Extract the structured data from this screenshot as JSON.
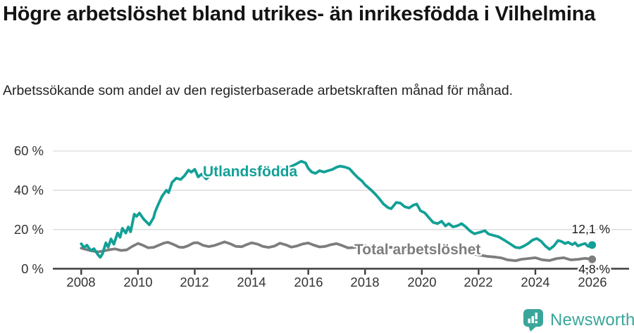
{
  "header": {},
  "colors": {
    "accent_teal": "#12a096",
    "series_gray": "#7d7d7d",
    "axis": "#3d3d3d",
    "grid": "#d9d9d9",
    "end_label_text": "#1a1a1a",
    "logo_teal": "#3aa69b",
    "background": "#ffffff"
  },
  "chart_data": {
    "type": "line",
    "title": "Högre arbetslöshet bland utrikes- än inrikesfödda i Vilhelmina",
    "subtitle": "Arbetssökande som andel av den registerbaserade arbetskraften månad för månad.",
    "xlabel": "",
    "ylabel": "",
    "xlim": [
      2007,
      2027.4
    ],
    "ylim": [
      0,
      60
    ],
    "x_ticks": [
      2008,
      2010,
      2012,
      2014,
      2016,
      2018,
      2020,
      2022,
      2024,
      2026
    ],
    "y_ticks": [
      0,
      20,
      40,
      60
    ],
    "y_tick_suffix": " %",
    "grid": "horizontal",
    "legend_position": "inline-on-line",
    "series": [
      {
        "name": "Utlandsfödda",
        "color": "#12a096",
        "end_label": "12,1 %",
        "end_value": 12.1,
        "points": [
          [
            2008.0,
            12.7
          ],
          [
            2008.1,
            10.8
          ],
          [
            2008.2,
            12.0
          ],
          [
            2008.33,
            9.3
          ],
          [
            2008.45,
            10.2
          ],
          [
            2008.58,
            7.3
          ],
          [
            2008.67,
            5.8
          ],
          [
            2008.75,
            7.6
          ],
          [
            2008.87,
            13.2
          ],
          [
            2008.95,
            11.0
          ],
          [
            2009.05,
            15.2
          ],
          [
            2009.15,
            12.5
          ],
          [
            2009.28,
            18.2
          ],
          [
            2009.37,
            16.0
          ],
          [
            2009.45,
            20.6
          ],
          [
            2009.57,
            18.2
          ],
          [
            2009.66,
            21.3
          ],
          [
            2009.74,
            18.8
          ],
          [
            2009.87,
            27.8
          ],
          [
            2009.95,
            26.7
          ],
          [
            2010.05,
            28.4
          ],
          [
            2010.2,
            25.3
          ],
          [
            2010.4,
            22.4
          ],
          [
            2010.55,
            26.0
          ],
          [
            2010.6,
            28.9
          ],
          [
            2010.72,
            33.0
          ],
          [
            2010.85,
            37.0
          ],
          [
            2011.0,
            40.0
          ],
          [
            2011.08,
            38.8
          ],
          [
            2011.2,
            44.0
          ],
          [
            2011.35,
            46.2
          ],
          [
            2011.5,
            45.5
          ],
          [
            2011.63,
            47.3
          ],
          [
            2011.78,
            50.3
          ],
          [
            2011.88,
            49.2
          ],
          [
            2012.0,
            50.7
          ],
          [
            2012.12,
            46.8
          ],
          [
            2012.25,
            48.3
          ],
          [
            2012.4,
            45.8
          ],
          [
            2012.55,
            47.5
          ],
          [
            2012.7,
            49.0
          ],
          [
            2012.9,
            50.2
          ],
          [
            2013.05,
            50.8
          ],
          [
            2013.2,
            48.8
          ],
          [
            2013.4,
            49.8
          ],
          [
            2013.6,
            50.3
          ],
          [
            2013.8,
            49.2
          ],
          [
            2014.0,
            50.6
          ],
          [
            2014.2,
            49.0
          ],
          [
            2014.4,
            50.2
          ],
          [
            2014.6,
            51.2
          ],
          [
            2014.8,
            50.2
          ],
          [
            2015.0,
            51.6
          ],
          [
            2015.2,
            50.8
          ],
          [
            2015.4,
            52.2
          ],
          [
            2015.6,
            53.6
          ],
          [
            2015.75,
            54.8
          ],
          [
            2015.9,
            54.0
          ],
          [
            2016.0,
            51.2
          ],
          [
            2016.12,
            49.3
          ],
          [
            2016.25,
            48.6
          ],
          [
            2016.4,
            50.0
          ],
          [
            2016.55,
            49.3
          ],
          [
            2016.7,
            50.0
          ],
          [
            2016.85,
            50.6
          ],
          [
            2017.0,
            51.8
          ],
          [
            2017.12,
            52.3
          ],
          [
            2017.3,
            51.8
          ],
          [
            2017.45,
            51.0
          ],
          [
            2017.6,
            48.6
          ],
          [
            2017.75,
            46.4
          ],
          [
            2017.9,
            44.6
          ],
          [
            2018.0,
            42.8
          ],
          [
            2018.2,
            40.3
          ],
          [
            2018.35,
            38.2
          ],
          [
            2018.5,
            35.7
          ],
          [
            2018.65,
            33.0
          ],
          [
            2018.8,
            31.2
          ],
          [
            2018.92,
            30.6
          ],
          [
            2019.1,
            33.8
          ],
          [
            2019.25,
            33.4
          ],
          [
            2019.4,
            31.6
          ],
          [
            2019.55,
            31.0
          ],
          [
            2019.7,
            32.4
          ],
          [
            2019.82,
            33.0
          ],
          [
            2019.95,
            29.6
          ],
          [
            2020.1,
            28.5
          ],
          [
            2020.25,
            26.0
          ],
          [
            2020.4,
            23.6
          ],
          [
            2020.55,
            23.0
          ],
          [
            2020.7,
            24.2
          ],
          [
            2020.83,
            21.8
          ],
          [
            2020.95,
            23.0
          ],
          [
            2021.1,
            21.3
          ],
          [
            2021.25,
            21.9
          ],
          [
            2021.4,
            23.0
          ],
          [
            2021.55,
            21.3
          ],
          [
            2021.7,
            19.2
          ],
          [
            2021.85,
            17.8
          ],
          [
            2021.97,
            18.3
          ],
          [
            2022.1,
            18.8
          ],
          [
            2022.22,
            19.4
          ],
          [
            2022.35,
            17.7
          ],
          [
            2022.5,
            17.1
          ],
          [
            2022.7,
            16.3
          ],
          [
            2022.9,
            14.6
          ],
          [
            2023.1,
            12.8
          ],
          [
            2023.3,
            10.9
          ],
          [
            2023.45,
            10.6
          ],
          [
            2023.6,
            11.6
          ],
          [
            2023.75,
            12.9
          ],
          [
            2023.9,
            14.6
          ],
          [
            2024.05,
            15.4
          ],
          [
            2024.2,
            14.0
          ],
          [
            2024.35,
            11.6
          ],
          [
            2024.5,
            9.9
          ],
          [
            2024.65,
            11.6
          ],
          [
            2024.8,
            14.4
          ],
          [
            2024.92,
            13.9
          ],
          [
            2025.05,
            12.8
          ],
          [
            2025.15,
            13.5
          ],
          [
            2025.3,
            12.3
          ],
          [
            2025.4,
            13.2
          ],
          [
            2025.5,
            11.6
          ],
          [
            2025.62,
            12.3
          ],
          [
            2025.75,
            12.9
          ],
          [
            2025.85,
            11.5
          ],
          [
            2025.95,
            11.2
          ],
          [
            2026.0,
            12.1
          ]
        ]
      },
      {
        "name": "Total arbetslöshet",
        "color": "#7d7d7d",
        "end_label": "4,8 %",
        "end_value": 4.8,
        "points": [
          [
            2008.0,
            10.5
          ],
          [
            2008.2,
            9.7
          ],
          [
            2008.4,
            9.0
          ],
          [
            2008.6,
            8.6
          ],
          [
            2008.8,
            9.1
          ],
          [
            2009.0,
            9.7
          ],
          [
            2009.2,
            10.1
          ],
          [
            2009.4,
            9.3
          ],
          [
            2009.6,
            9.6
          ],
          [
            2009.8,
            11.4
          ],
          [
            2010.0,
            12.9
          ],
          [
            2010.15,
            12.1
          ],
          [
            2010.35,
            10.7
          ],
          [
            2010.55,
            10.9
          ],
          [
            2010.75,
            12.1
          ],
          [
            2010.9,
            13.0
          ],
          [
            2011.05,
            13.5
          ],
          [
            2011.25,
            12.4
          ],
          [
            2011.45,
            11.0
          ],
          [
            2011.6,
            10.9
          ],
          [
            2011.75,
            11.6
          ],
          [
            2011.95,
            13.1
          ],
          [
            2012.1,
            13.3
          ],
          [
            2012.3,
            11.9
          ],
          [
            2012.5,
            11.3
          ],
          [
            2012.7,
            11.9
          ],
          [
            2012.9,
            12.9
          ],
          [
            2013.05,
            13.7
          ],
          [
            2013.25,
            12.7
          ],
          [
            2013.45,
            11.4
          ],
          [
            2013.65,
            11.2
          ],
          [
            2013.85,
            12.4
          ],
          [
            2014.0,
            13.2
          ],
          [
            2014.2,
            12.6
          ],
          [
            2014.4,
            11.4
          ],
          [
            2014.6,
            10.9
          ],
          [
            2014.8,
            11.5
          ],
          [
            2015.0,
            13.0
          ],
          [
            2015.2,
            12.2
          ],
          [
            2015.4,
            11.0
          ],
          [
            2015.6,
            11.6
          ],
          [
            2015.8,
            12.6
          ],
          [
            2016.0,
            13.1
          ],
          [
            2016.2,
            12.0
          ],
          [
            2016.4,
            11.1
          ],
          [
            2016.6,
            11.4
          ],
          [
            2016.8,
            12.3
          ],
          [
            2017.0,
            12.8
          ],
          [
            2017.2,
            11.8
          ],
          [
            2017.4,
            10.6
          ],
          [
            2017.6,
            10.8
          ],
          [
            2017.8,
            11.4
          ],
          [
            2018.0,
            11.8
          ],
          [
            2018.2,
            10.8
          ],
          [
            2018.4,
            9.9
          ],
          [
            2018.6,
            10.1
          ],
          [
            2018.8,
            10.8
          ],
          [
            2019.0,
            11.0
          ],
          [
            2019.25,
            10.1
          ],
          [
            2019.5,
            9.6
          ],
          [
            2019.75,
            10.2
          ],
          [
            2020.0,
            10.8
          ],
          [
            2020.25,
            10.2
          ],
          [
            2020.5,
            9.7
          ],
          [
            2020.75,
            9.3
          ],
          [
            2021.0,
            9.6
          ],
          [
            2021.25,
            8.9
          ],
          [
            2021.5,
            8.1
          ],
          [
            2021.75,
            7.6
          ],
          [
            2022.0,
            7.1
          ],
          [
            2022.3,
            6.3
          ],
          [
            2022.55,
            6.0
          ],
          [
            2022.8,
            5.5
          ],
          [
            2023.0,
            4.6
          ],
          [
            2023.3,
            4.1
          ],
          [
            2023.5,
            4.8
          ],
          [
            2023.75,
            5.2
          ],
          [
            2024.0,
            5.6
          ],
          [
            2024.25,
            4.5
          ],
          [
            2024.5,
            4.2
          ],
          [
            2024.75,
            5.2
          ],
          [
            2025.0,
            5.6
          ],
          [
            2025.25,
            4.5
          ],
          [
            2025.5,
            4.8
          ],
          [
            2025.75,
            5.3
          ],
          [
            2026.0,
            4.8
          ]
        ]
      }
    ]
  },
  "branding": {
    "name": "Newsworthy"
  }
}
